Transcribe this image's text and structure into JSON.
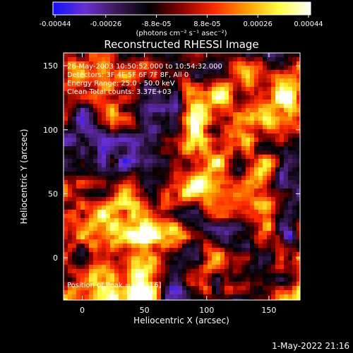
{
  "colorbar": {
    "tick_labels": [
      "-0.00044",
      "-0.00026",
      "-8.8e-05",
      "8.8e-05",
      "0.00026",
      "0.00044"
    ],
    "unit_label": "(photons cm⁻² s⁻¹ asec⁻²)",
    "stops": [
      "#1010ff",
      "#6a2fd0",
      "#3a1a55",
      "#000000",
      "#8a0000",
      "#ff2a00",
      "#ff9a00",
      "#ffff40",
      "#ffffff"
    ]
  },
  "chart_data": {
    "type": "heatmap",
    "title": "Reconstructed RHESSI Image",
    "xlabel": "Heliocentric X (arcsec)",
    "ylabel": "Heliocentric Y (arcsec)",
    "xlim": [
      -15,
      175
    ],
    "ylim": [
      -33,
      160
    ],
    "xticks": [
      0,
      50,
      100,
      150
    ],
    "yticks": [
      0,
      50,
      100,
      150
    ],
    "xtick_labels": [
      "0",
      "50",
      "100",
      "150"
    ],
    "ytick_labels": [
      "0",
      "50",
      "100",
      "150"
    ],
    "peak_xy": [
      46,
      -16
    ],
    "total_counts": 3370,
    "energy_range_keV": [
      25.0,
      50.0
    ],
    "detectors": [
      "3F",
      "4F",
      "5F",
      "6F",
      "7F",
      "8F",
      "All 0"
    ]
  },
  "info": {
    "time_range": "26-May-2003 10:50:52.000 to 10:54:32.000",
    "detectors": "Detectors: 3F 4F 5F 6F 7F 8F, All 0",
    "energy": "Energy Range: 25.0 - 50.0 keV",
    "clean_counts": "Clean     Total counts: 3.37E+03",
    "peak": "Position of Peak = [46,-16]"
  },
  "footer": {
    "timestamp": "1-May-2022 21:16"
  }
}
